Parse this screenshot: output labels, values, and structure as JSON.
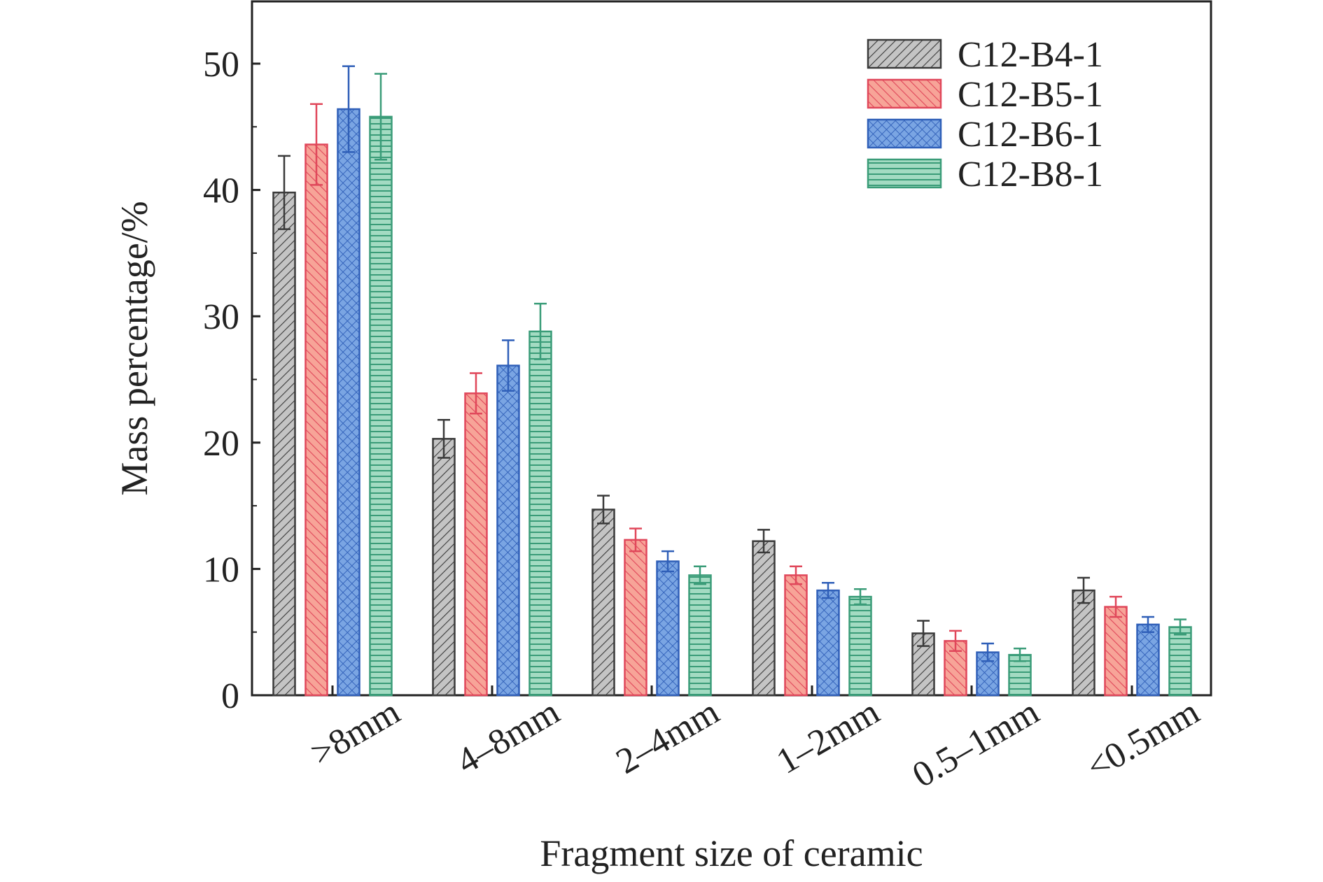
{
  "chart_data": {
    "type": "bar",
    "xlabel": "Fragment size of ceramic",
    "ylabel": "Mass percentage/%",
    "ylim": [
      0,
      55
    ],
    "yticks": [
      0,
      10,
      20,
      30,
      40,
      50
    ],
    "categories": [
      ">8mm",
      "4–8mm",
      "2–4mm",
      "1–2mm",
      "0.5–1mm",
      "<0.5mm"
    ],
    "legend_position": "top-right",
    "grid": false,
    "series": [
      {
        "name": "C12-B4-1",
        "color": "#b8b8b8",
        "edge": "#3a3a3a",
        "pattern": "diagonal",
        "values": [
          39.8,
          20.3,
          14.7,
          12.2,
          4.9,
          8.3
        ],
        "errors": [
          2.9,
          1.5,
          1.1,
          0.9,
          1.0,
          1.0
        ]
      },
      {
        "name": "C12-B5-1",
        "color": "#f59a8e",
        "edge": "#e0475a",
        "pattern": "backdiagonal",
        "values": [
          43.6,
          23.9,
          12.3,
          9.5,
          4.3,
          7.0
        ],
        "errors": [
          3.2,
          1.6,
          0.9,
          0.7,
          0.8,
          0.8
        ]
      },
      {
        "name": "C12-B6-1",
        "color": "#6f9ee0",
        "edge": "#2f5fb8",
        "pattern": "crosshatch",
        "values": [
          46.4,
          26.1,
          10.6,
          8.3,
          3.4,
          5.6
        ],
        "errors": [
          3.4,
          2.0,
          0.8,
          0.6,
          0.7,
          0.6
        ]
      },
      {
        "name": "C12-B8-1",
        "color": "#8fd1b3",
        "edge": "#3a9c78",
        "pattern": "horizontal",
        "values": [
          45.8,
          28.8,
          9.5,
          7.8,
          3.2,
          5.4
        ],
        "errors": [
          3.4,
          2.2,
          0.7,
          0.6,
          0.5,
          0.6
        ]
      }
    ]
  }
}
